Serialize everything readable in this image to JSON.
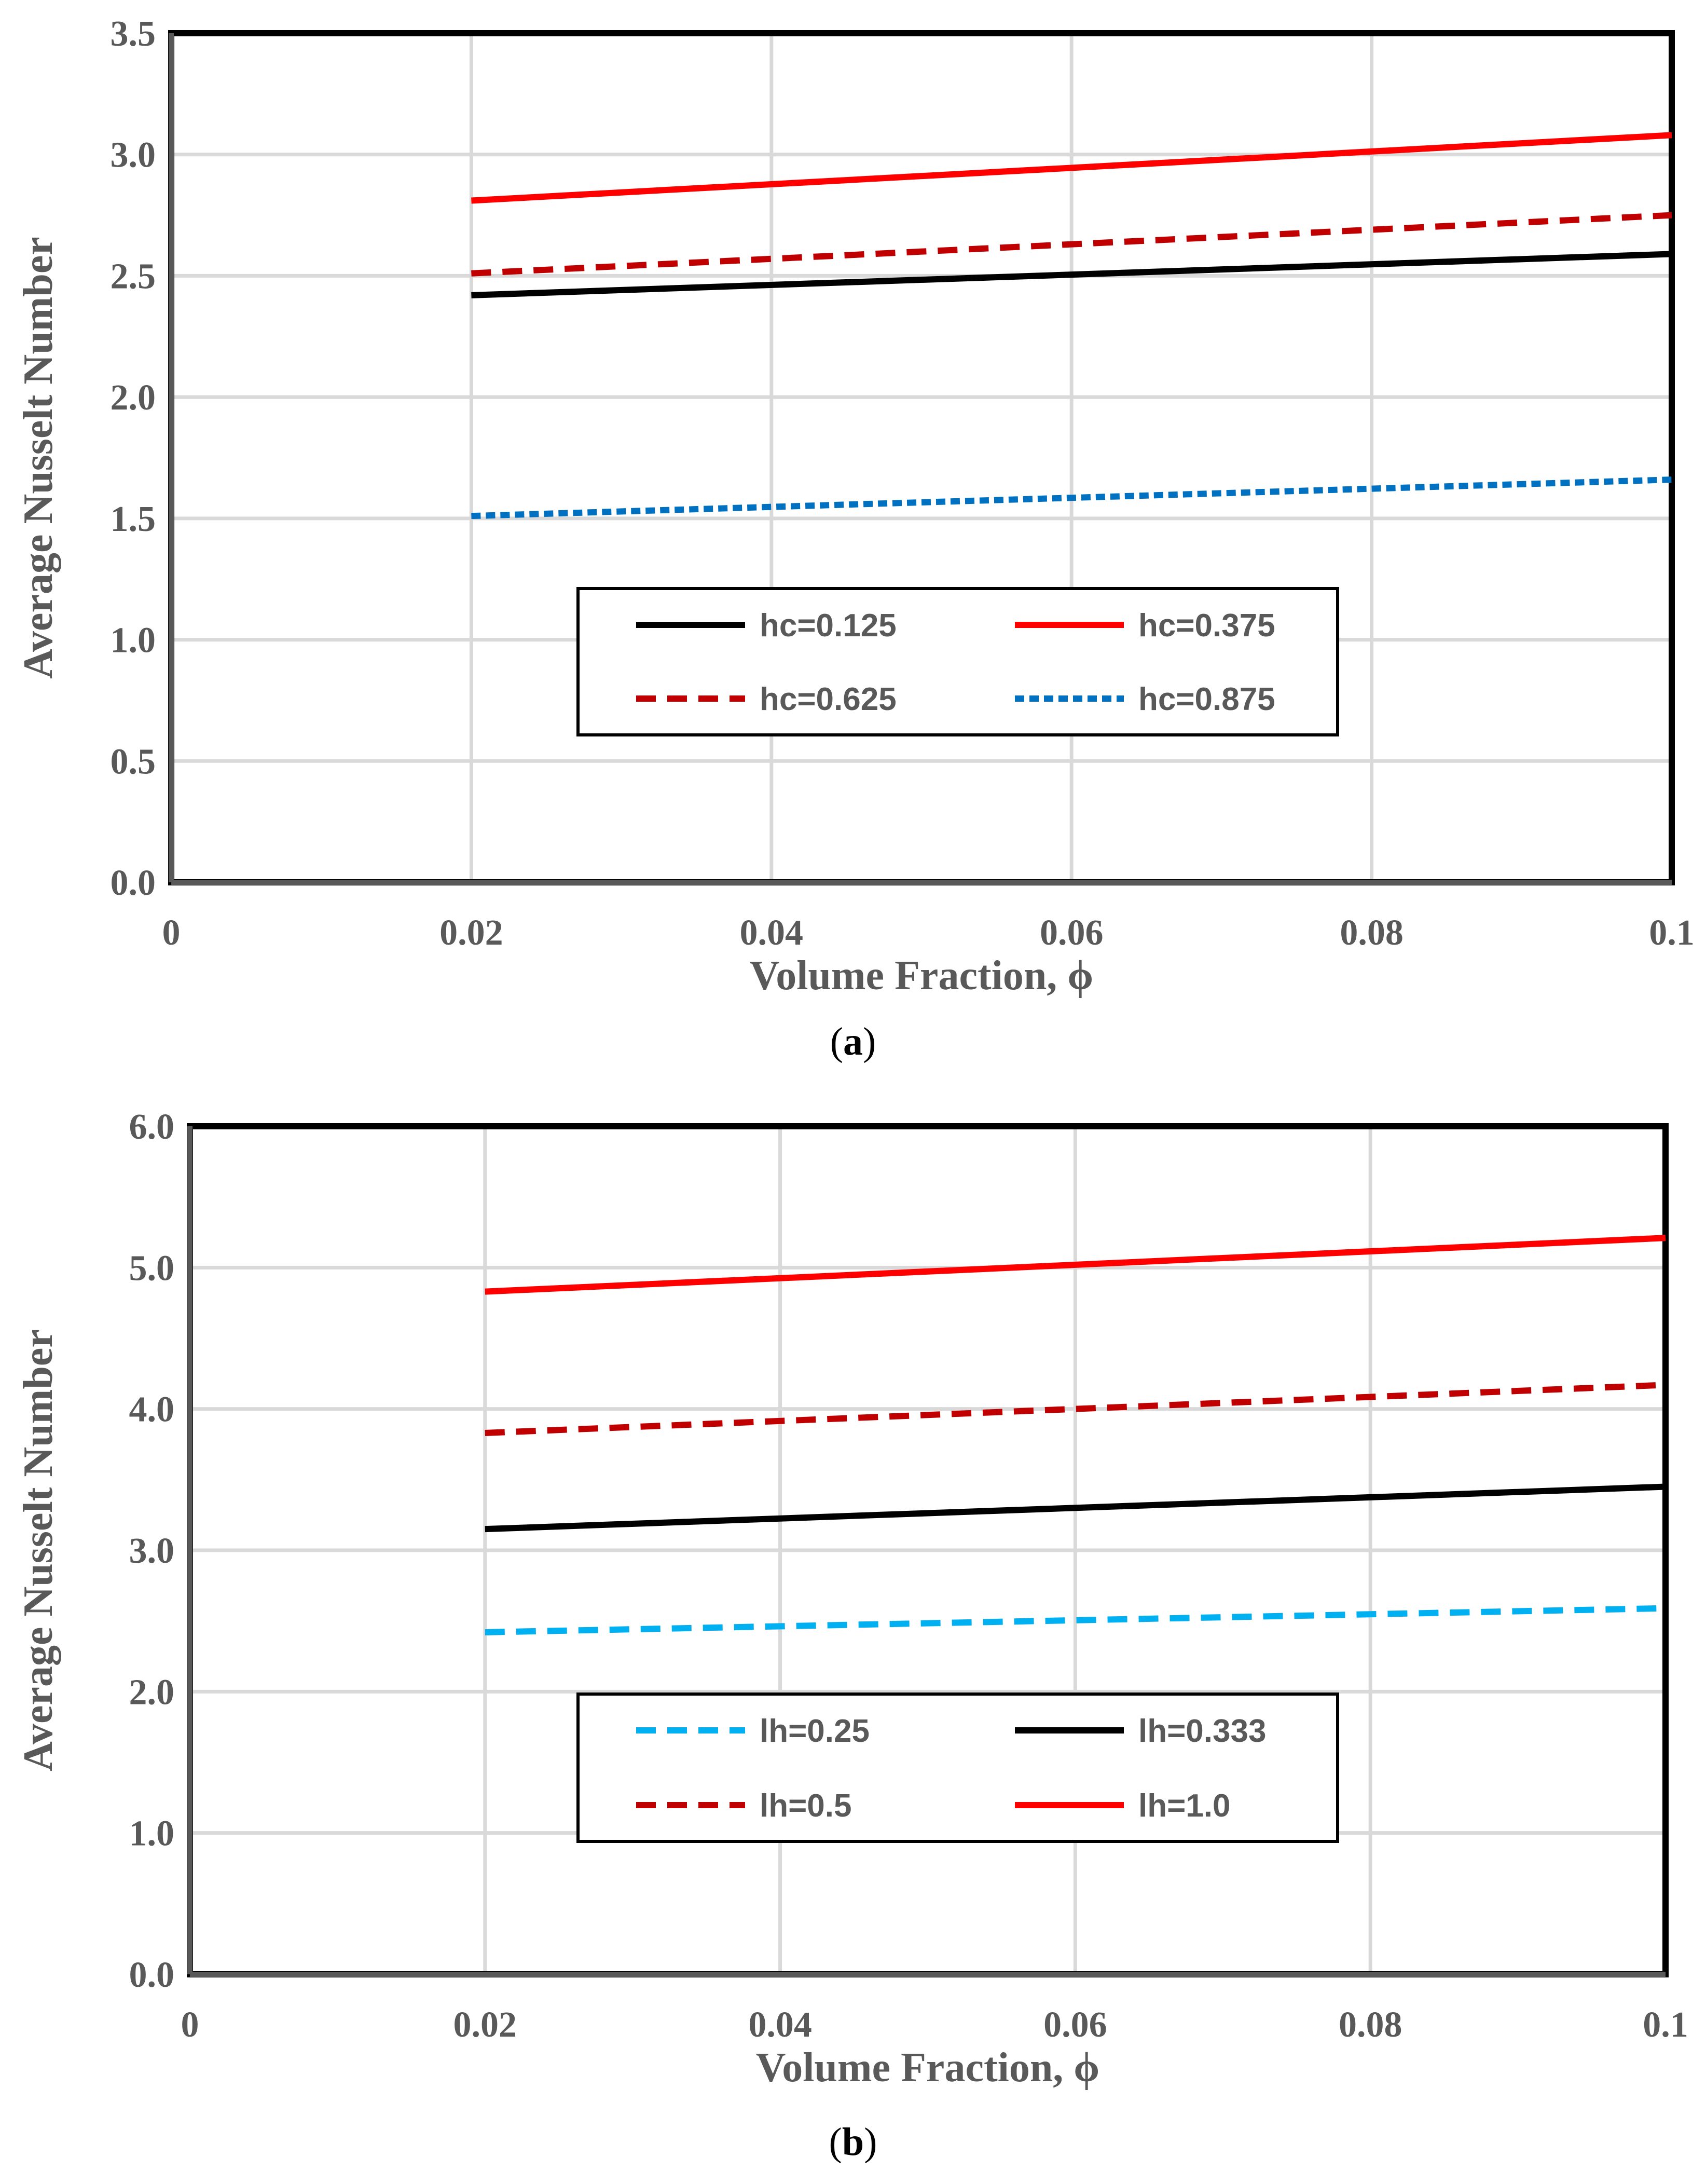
{
  "chart_data": [
    {
      "id": "a",
      "type": "line",
      "caption": {
        "open": "(",
        "letter": "a",
        "close": ")"
      },
      "xlabel": "Volume Fraction, ϕ",
      "ylabel": "Average Nusselt Number",
      "xlim": [
        0,
        0.1
      ],
      "ylim": [
        0,
        3.5
      ],
      "xticks": [
        0,
        0.02,
        0.04,
        0.06,
        0.08,
        0.1
      ],
      "xtick_labels": [
        "0",
        "0.02",
        "0.04",
        "0.06",
        "0.08",
        "0.1"
      ],
      "yticks": [
        0,
        0.5,
        1.0,
        1.5,
        2.0,
        2.5,
        3.0,
        3.5
      ],
      "ytick_labels": [
        "0.0",
        "0.5",
        "1.0",
        "1.5",
        "2.0",
        "2.5",
        "3.0",
        "3.5"
      ],
      "grid": true,
      "legend_position": "center",
      "series": [
        {
          "name": "hc=0.125",
          "color": "#000000",
          "style": "solid",
          "x": [
            0.02,
            0.1
          ],
          "y": [
            2.42,
            2.59
          ]
        },
        {
          "name": "hc=0.375",
          "color": "#ff0000",
          "style": "solid",
          "x": [
            0.02,
            0.1
          ],
          "y": [
            2.81,
            3.08
          ]
        },
        {
          "name": "hc=0.625",
          "color": "#c00000",
          "style": "dashed",
          "x": [
            0.02,
            0.1
          ],
          "y": [
            2.51,
            2.75
          ]
        },
        {
          "name": "hc=0.875",
          "color": "#0070c0",
          "style": "dotted",
          "x": [
            0.02,
            0.1
          ],
          "y": [
            1.51,
            1.66
          ]
        }
      ]
    },
    {
      "id": "b",
      "type": "line",
      "caption": {
        "open": "(",
        "letter": "b",
        "close": ")"
      },
      "xlabel": "Volume Fraction, ϕ",
      "ylabel": "Average Nusselt Number",
      "xlim": [
        0,
        0.1
      ],
      "ylim": [
        0,
        6.0
      ],
      "xticks": [
        0,
        0.02,
        0.04,
        0.06,
        0.08,
        0.1
      ],
      "xtick_labels": [
        "0",
        "0.02",
        "0.04",
        "0.06",
        "0.08",
        "0.1"
      ],
      "yticks": [
        0,
        1.0,
        2.0,
        3.0,
        4.0,
        5.0,
        6.0
      ],
      "ytick_labels": [
        "0.0",
        "1.0",
        "2.0",
        "3.0",
        "4.0",
        "5.0",
        "6.0"
      ],
      "grid": true,
      "legend_position": "center-bottom",
      "series": [
        {
          "name": "lh=0.25",
          "color": "#00b0f0",
          "style": "dashed",
          "x": [
            0.02,
            0.1
          ],
          "y": [
            2.42,
            2.59
          ]
        },
        {
          "name": "lh=0.333",
          "color": "#000000",
          "style": "solid",
          "x": [
            0.02,
            0.1
          ],
          "y": [
            3.15,
            3.45
          ]
        },
        {
          "name": "lh=0.5",
          "color": "#c00000",
          "style": "dashed",
          "x": [
            0.02,
            0.1
          ],
          "y": [
            3.83,
            4.17
          ]
        },
        {
          "name": "lh=1.0",
          "color": "#ff0000",
          "style": "solid",
          "x": [
            0.02,
            0.1
          ],
          "y": [
            4.83,
            5.21
          ]
        }
      ]
    }
  ]
}
